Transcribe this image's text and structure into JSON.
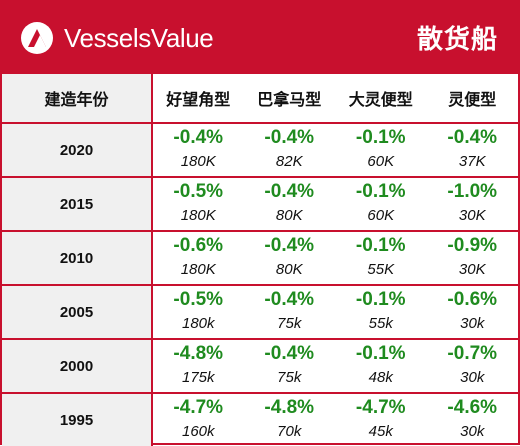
{
  "brand": {
    "name": "VesselsValue",
    "accent": "#c8102e",
    "positive_color": "#1f8b1f"
  },
  "title": "散货船",
  "columns": [
    "建造年份",
    "好望角型",
    "巴拿马型",
    "大灵便型",
    "灵便型"
  ],
  "rows": [
    {
      "year": "2020",
      "cells": [
        {
          "change": "-0.4%",
          "size": "180K"
        },
        {
          "change": "-0.4%",
          "size": "82K"
        },
        {
          "change": "-0.1%",
          "size": "60K"
        },
        {
          "change": "-0.4%",
          "size": "37K"
        }
      ]
    },
    {
      "year": "2015",
      "cells": [
        {
          "change": "-0.5%",
          "size": "180K"
        },
        {
          "change": "-0.4%",
          "size": "80K"
        },
        {
          "change": "-0.1%",
          "size": "60K"
        },
        {
          "change": "-1.0%",
          "size": "30K"
        }
      ]
    },
    {
      "year": "2010",
      "cells": [
        {
          "change": "-0.6%",
          "size": "180K"
        },
        {
          "change": "-0.4%",
          "size": "80K"
        },
        {
          "change": "-0.1%",
          "size": "55K"
        },
        {
          "change": "-0.9%",
          "size": "30K"
        }
      ]
    },
    {
      "year": "2005",
      "cells": [
        {
          "change": "-0.5%",
          "size": "180k"
        },
        {
          "change": "-0.4%",
          "size": "75k"
        },
        {
          "change": "-0.1%",
          "size": "55k"
        },
        {
          "change": "-0.6%",
          "size": "30k"
        }
      ]
    },
    {
      "year": "2000",
      "cells": [
        {
          "change": "-4.8%",
          "size": "175k"
        },
        {
          "change": "-0.4%",
          "size": "75k"
        },
        {
          "change": "-0.1%",
          "size": "48k"
        },
        {
          "change": "-0.7%",
          "size": "30k"
        }
      ]
    },
    {
      "year": "1995",
      "cells": [
        {
          "change": "-4.7%",
          "size": "160k"
        },
        {
          "change": "-4.8%",
          "size": "70k"
        },
        {
          "change": "-4.7%",
          "size": "45k"
        },
        {
          "change": "-4.6%",
          "size": "30k"
        }
      ]
    }
  ]
}
